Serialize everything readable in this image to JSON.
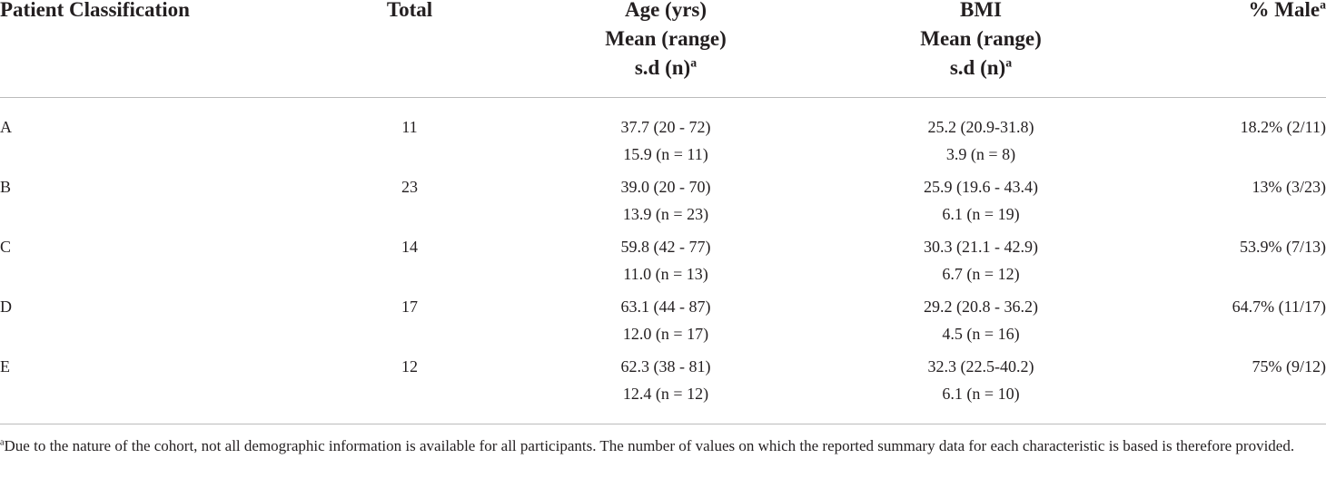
{
  "table": {
    "headers": [
      {
        "lines": [
          "Patient Classification"
        ]
      },
      {
        "lines": [
          "Total"
        ]
      },
      {
        "lines": [
          "Age (yrs)",
          "Mean (range)",
          "s.d (n)"
        ],
        "sup": "a"
      },
      {
        "lines": [
          "BMI",
          "Mean (range)",
          "s.d (n)"
        ],
        "sup": "a"
      },
      {
        "lines": [
          "% Male"
        ],
        "sup": "a"
      }
    ],
    "rows": [
      [
        "A",
        "11",
        [
          "37.7 (20 - 72)",
          "15.9 (n = 11)"
        ],
        [
          "25.2 (20.9-31.8)",
          "3.9 (n = 8)"
        ],
        "18.2% (2/11)"
      ],
      [
        "B",
        "23",
        [
          "39.0 (20 - 70)",
          "13.9 (n = 23)"
        ],
        [
          "25.9 (19.6 - 43.4)",
          "6.1 (n = 19)"
        ],
        "13% (3/23)"
      ],
      [
        "C",
        "14",
        [
          "59.8 (42 - 77)",
          "11.0 (n = 13)"
        ],
        [
          "30.3 (21.1 - 42.9)",
          "6.7 (n = 12)"
        ],
        "53.9% (7/13)"
      ],
      [
        "D",
        "17",
        [
          "63.1 (44 - 87)",
          "12.0 (n = 17)"
        ],
        [
          "29.2 (20.8 - 36.2)",
          "4.5 (n = 16)"
        ],
        "64.7% (11/17)"
      ],
      [
        "E",
        "12",
        [
          "62.3 (38 - 81)",
          "12.4 (n = 12)"
        ],
        [
          "32.3 (22.5-40.2)",
          "6.1 (n = 10)"
        ],
        "75% (9/12)"
      ]
    ]
  },
  "footnote": {
    "sup": "a",
    "text": "Due to the nature of the cohort, not all demographic information is available for all participants. The number of values on which the reported summary data for each characteristic is based is therefore provided."
  }
}
